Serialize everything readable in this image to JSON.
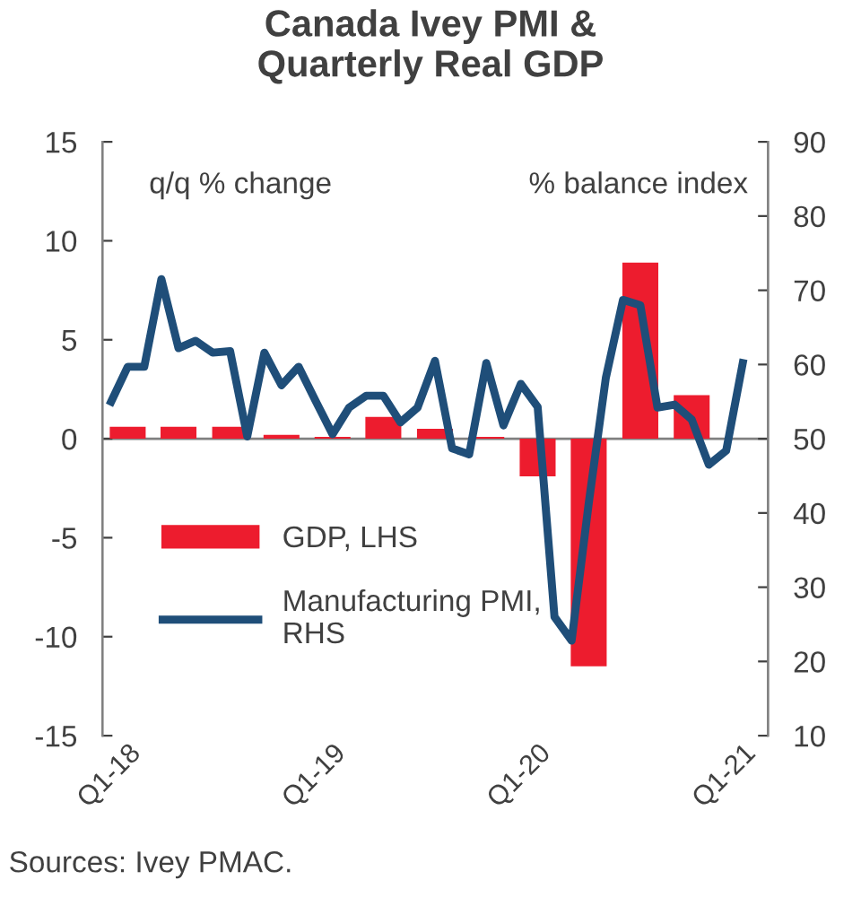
{
  "chart_data": {
    "type": "bar",
    "title": "Canada Ivey PMI &\nQuarterly Real GDP",
    "ylabel": "q/q % change",
    "y2label": "% balance index",
    "annotations": [
      "Sources: Ivey PMAC."
    ],
    "x": [
      "2018-02",
      "2018-05",
      "2018-08",
      "2018-11",
      "2019-02",
      "2019-05",
      "2019-08",
      "2019-11",
      "2020-02",
      "2020-05",
      "2020-08",
      "2020-11"
    ],
    "series": [
      {
        "name": "GDP, LHS",
        "color": "#ed1c2e",
        "values": [
          0.6,
          0.6,
          0.6,
          0.2,
          0.1,
          1.1,
          0.5,
          0.1,
          -1.9,
          -11.5,
          8.9,
          2.2
        ]
      },
      {
        "name": "Manufacturing PMI,\nRHS",
        "type": "line",
        "axis": "y2",
        "color": "#1f4e79",
        "x": [
          "2018-01",
          "2018-02",
          "2018-03",
          "2018-04",
          "2018-05",
          "2018-06",
          "2018-07",
          "2018-08",
          "2018-09",
          "2018-10",
          "2018-11",
          "2018-12",
          "2019-01",
          "2019-02",
          "2019-03",
          "2019-04",
          "2019-05",
          "2019-06",
          "2019-07",
          "2019-08",
          "2019-09",
          "2019-10",
          "2019-11",
          "2019-12",
          "2020-01",
          "2020-02",
          "2020-03",
          "2020-04",
          "2020-05",
          "2020-06",
          "2020-07",
          "2020-08",
          "2020-09",
          "2020-10",
          "2020-11",
          "2020-12",
          "2021-01",
          "2021-02"
        ],
        "values": [
          55.0,
          59.7,
          59.7,
          71.5,
          62.2,
          63.2,
          61.6,
          61.8,
          50.3,
          61.6,
          57.2,
          59.7,
          55.0,
          50.6,
          54.2,
          55.8,
          55.8,
          52.2,
          54.2,
          60.5,
          48.7,
          47.9,
          60.2,
          51.8,
          57.4,
          54.3,
          26.0,
          22.8,
          41.3,
          58.2,
          68.7,
          68.0,
          54.2,
          54.6,
          52.6,
          46.5,
          48.4,
          60.2
        ]
      }
    ],
    "xlim": [
      "2018-01",
      "2021-03"
    ],
    "xticks": [
      {
        "value": "2018-02",
        "label": "Q1-18"
      },
      {
        "value": "2019-02",
        "label": "Q1-19"
      },
      {
        "value": "2020-02",
        "label": "Q1-20"
      },
      {
        "value": "2021-02",
        "label": "Q1-21"
      }
    ],
    "ylim": [
      -15,
      15
    ],
    "yticks": [
      -15,
      -10,
      -5,
      0,
      5,
      10,
      15
    ],
    "y2lim": [
      10,
      90
    ],
    "y2ticks": [
      10,
      20,
      30,
      40,
      50,
      60,
      70,
      80,
      90
    ],
    "ref_lines": [
      {
        "axis": "y",
        "value": 0,
        "color": "#808080"
      }
    ],
    "line_style": "solid",
    "grid": false,
    "legend": "bottom left"
  }
}
